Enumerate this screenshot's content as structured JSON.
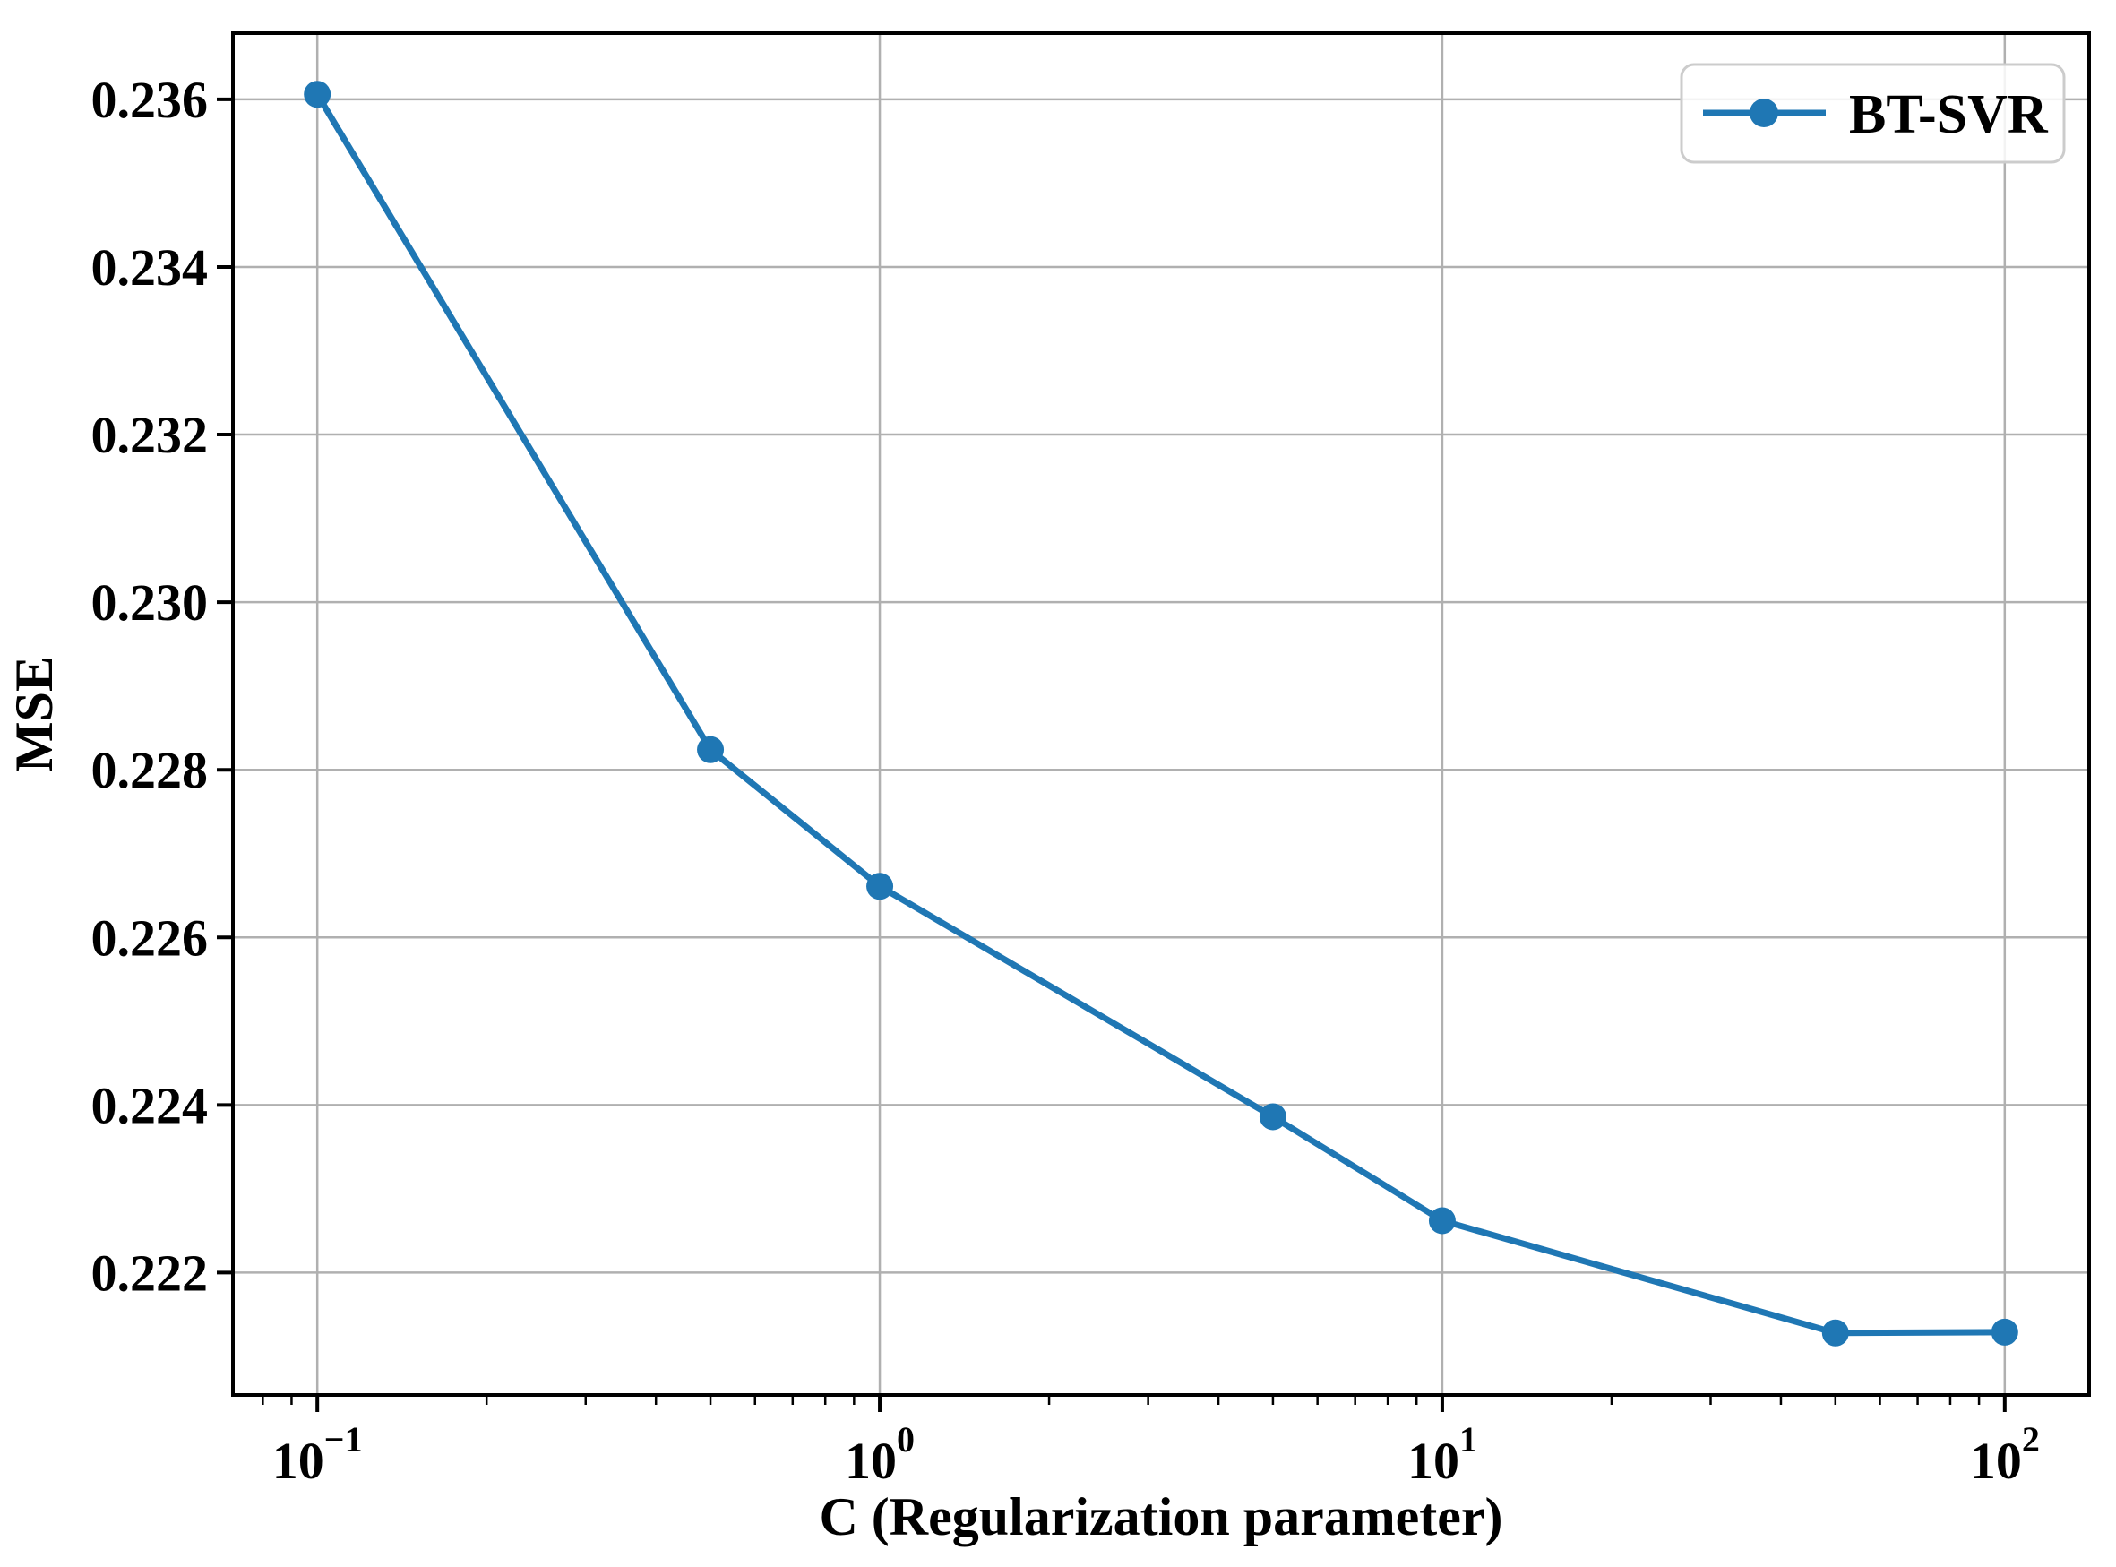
{
  "figure": {
    "background": "#ffffff"
  },
  "chart_data": {
    "type": "line",
    "title": "",
    "xlabel": "C (Regularization parameter)",
    "ylabel": "MSE",
    "x_scale": "log",
    "series": [
      {
        "name": "BT-SVR",
        "x": [
          0.1,
          0.5,
          1,
          5,
          10,
          50,
          100
        ],
        "y": [
          0.23606,
          0.22824,
          0.22661,
          0.22386,
          0.22262,
          0.22128,
          0.22129
        ],
        "color": "#1f77b4",
        "marker": "circle"
      }
    ],
    "xlim_log10": [
      -1.15,
      2.15
    ],
    "ylim": [
      0.22054,
      0.23679
    ],
    "x_tick_base": "10",
    "x_tick_exponents": [
      -1,
      0,
      1,
      2
    ],
    "y_ticks": [
      0.222,
      0.224,
      0.226,
      0.228,
      0.23,
      0.232,
      0.234,
      0.236
    ],
    "y_tick_decimals": 3,
    "grid": true,
    "grid_color": "#b0b0b0",
    "spine_color": "#000000",
    "tick_color": "#000000",
    "legend": {
      "position": "upper right",
      "labels": [
        "BT-SVR"
      ]
    }
  }
}
